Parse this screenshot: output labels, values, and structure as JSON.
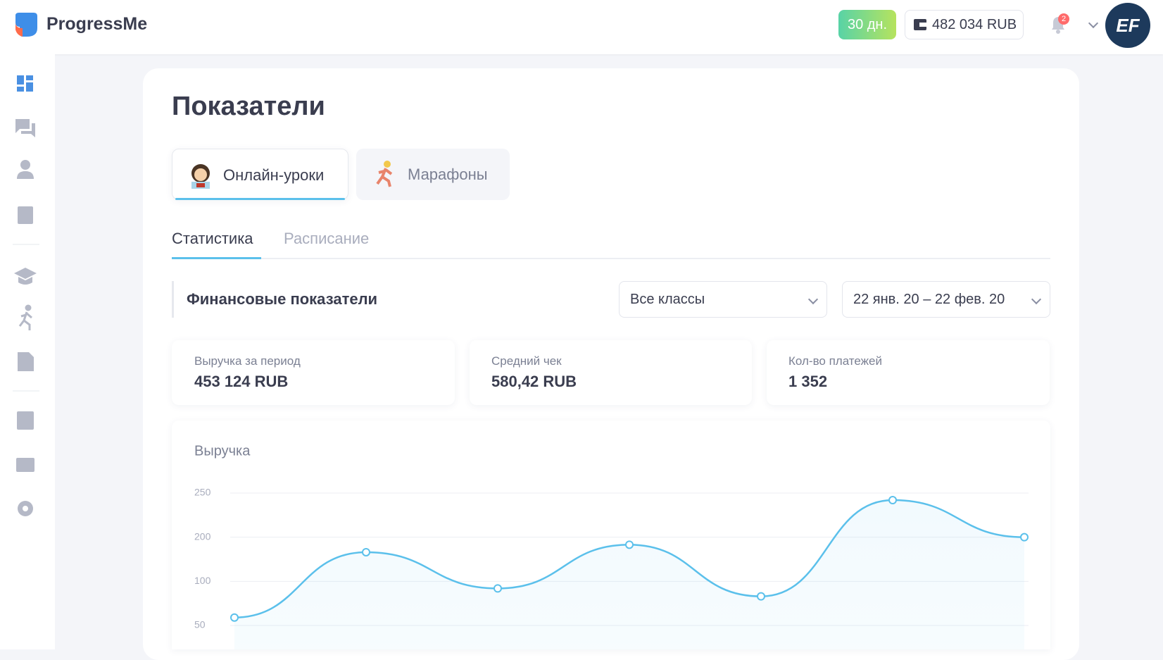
{
  "header": {
    "logo": "ProgressMe",
    "trial": "30 дн.",
    "balance": "482 034 RUB",
    "notifications": "2",
    "avatar": "EF"
  },
  "page": {
    "title": "Показатели"
  },
  "tabs": [
    "Онлайн-уроки",
    "Марафоны"
  ],
  "subtabs": [
    "Статистика",
    "Расписание"
  ],
  "section": {
    "title": "Финансовые показатели",
    "filter_class": "Все классы",
    "filter_period": "22 янв. 20 – 22 фев. 20"
  },
  "stats": [
    {
      "label": "Выручка за период",
      "value": "453 124 RUB"
    },
    {
      "label": "Средний чек",
      "value": "580,42 RUB"
    },
    {
      "label": "Кол-во платежей",
      "value": "1 352"
    }
  ],
  "chart_data": {
    "type": "line",
    "title": "Выручка",
    "categories": [
      null,
      null,
      null,
      null,
      null,
      null,
      null
    ],
    "values": [
      59,
      166,
      92,
      183,
      83,
      242,
      200
    ],
    "color": "#5bc0eb",
    "ylim": [
      50,
      250
    ],
    "yticks": [
      50,
      100,
      200,
      250
    ],
    "grid": true
  }
}
